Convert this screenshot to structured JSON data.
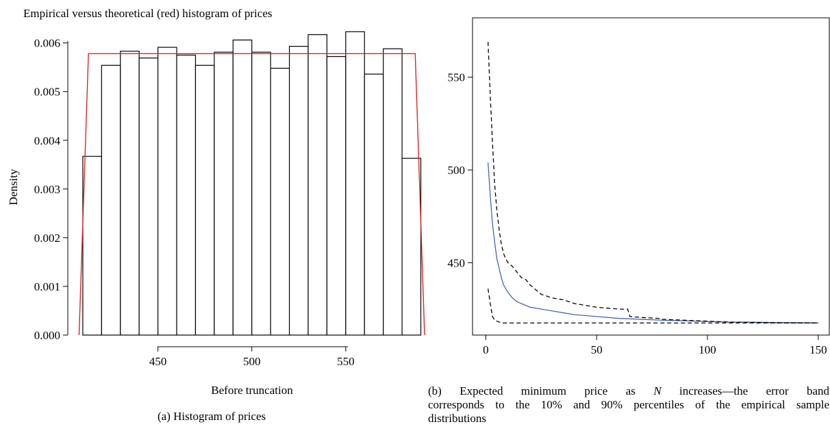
{
  "chart_data": [
    {
      "type": "bar",
      "title": "Empirical versus theoretical (red) histogram of prices",
      "xlabel": "Before truncation",
      "ylabel": "Density",
      "caption": "(a)  Histogram of prices",
      "bin_edges": [
        410,
        420,
        430,
        440,
        450,
        460,
        470,
        480,
        490,
        500,
        510,
        520,
        530,
        540,
        550,
        560,
        570,
        580,
        590
      ],
      "values": [
        0.00367,
        0.00554,
        0.00583,
        0.00569,
        0.00591,
        0.00575,
        0.00554,
        0.00581,
        0.00606,
        0.00581,
        0.00548,
        0.00593,
        0.00617,
        0.00572,
        0.00623,
        0.00536,
        0.00588,
        0.00363
      ],
      "theoretical_curve": {
        "color": "#d62728",
        "x": [
          408,
          413,
          587,
          592
        ],
        "y": [
          0,
          0.00578,
          0.00578,
          0
        ]
      },
      "xticks": [
        450,
        500,
        550
      ],
      "yticks": [
        0.0,
        0.001,
        0.002,
        0.003,
        0.004,
        0.005,
        0.006
      ],
      "ytick_labels": [
        "0.000",
        "0.001",
        "0.002",
        "0.003",
        "0.004",
        "0.005",
        "0.006"
      ],
      "xlim": [
        402,
        592
      ],
      "ylim": [
        0,
        0.0066
      ],
      "grid": false,
      "bar_color": "#ffffff",
      "edge_color": "#000000"
    },
    {
      "type": "line",
      "caption_lines": [
        "(b) Expected minimum price as N increases—the error band",
        "corresponds to the 10% and 90% percentiles of the empirical sample",
        "distributions"
      ],
      "xticks": [
        0,
        50,
        100,
        150
      ],
      "yticks": [
        450,
        500,
        550
      ],
      "xlim": [
        -6,
        155
      ],
      "ylim": [
        411,
        582
      ],
      "grid": false,
      "series": [
        {
          "color": "#3b5aa8",
          "style": "solid",
          "x": [
            1,
            2,
            3,
            4,
            5,
            6,
            7,
            8,
            9,
            10,
            12,
            14,
            16,
            18,
            20,
            25,
            30,
            35,
            40,
            45,
            50,
            60,
            70,
            80,
            90,
            100,
            110,
            120,
            130,
            140,
            150
          ],
          "y": [
            504,
            486,
            471,
            461,
            452,
            447,
            442,
            438,
            436,
            434,
            431,
            429,
            428,
            427,
            426,
            425,
            424,
            423,
            422,
            421.5,
            421,
            420,
            419.5,
            419,
            418.7,
            418.3,
            418,
            418,
            417.8,
            417.7,
            417.6
          ]
        },
        {
          "color": "#000000",
          "style": "dashed",
          "x": [
            1,
            2,
            3,
            4,
            5,
            6,
            7,
            8,
            9,
            10,
            12,
            14,
            16,
            18,
            20,
            25,
            30,
            35,
            40,
            45,
            50,
            60,
            64,
            65,
            70,
            78,
            80,
            90,
            100,
            110,
            120,
            130,
            140,
            150
          ],
          "y": [
            569,
            540,
            515,
            492,
            478,
            468,
            460,
            455,
            452,
            450,
            448,
            445,
            442,
            441,
            438,
            433,
            431,
            430,
            428,
            427,
            426,
            425,
            425,
            421,
            420.5,
            420,
            419.5,
            419,
            418.5,
            418,
            417.8,
            417.6,
            417.5,
            417.5
          ]
        },
        {
          "color": "#000000",
          "style": "dashed",
          "x": [
            1,
            2,
            3,
            4,
            5,
            6,
            8,
            10,
            20,
            50,
            100,
            150
          ],
          "y": [
            436,
            428,
            421,
            419,
            418.5,
            418,
            417.5,
            417.5,
            417.5,
            417.5,
            417.5,
            417.5
          ]
        }
      ]
    }
  ]
}
